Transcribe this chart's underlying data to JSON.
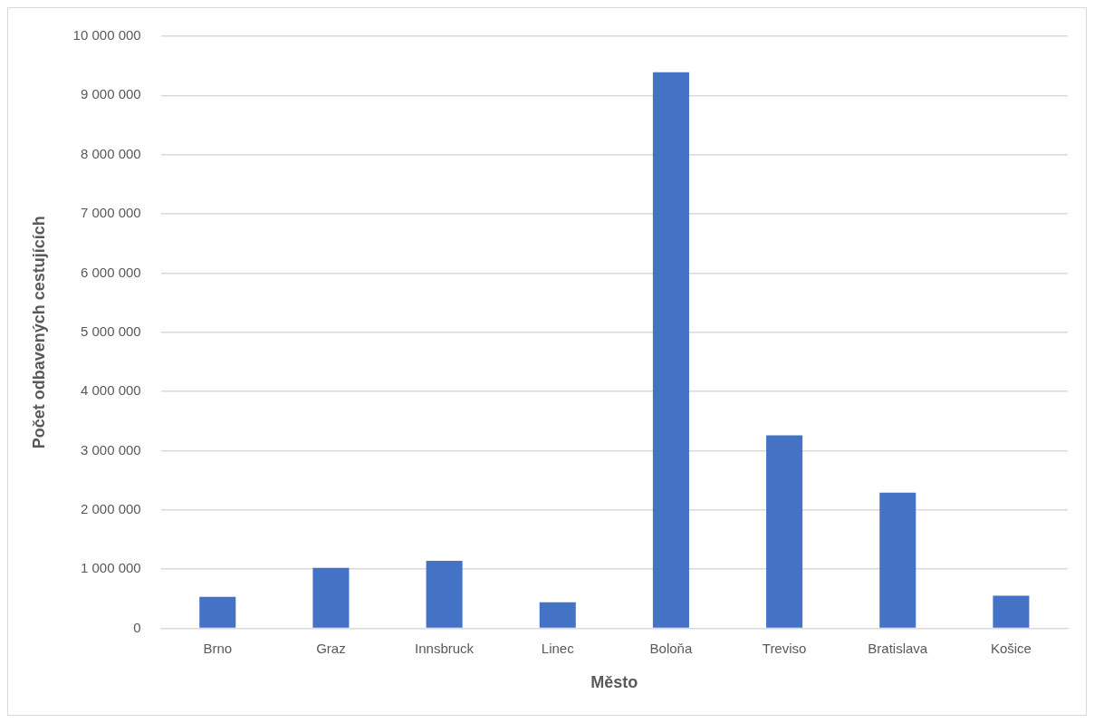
{
  "chart_data": {
    "type": "bar",
    "xlabel": "Město",
    "ylabel": "Počet odbavených cestujících",
    "categories": [
      "Brno",
      "Graz",
      "Innsbruck",
      "Linec",
      "Boloňa",
      "Treviso",
      "Bratislava",
      "Košice"
    ],
    "series": [
      {
        "color": "#4472c4",
        "values": [
          530000,
          1020000,
          1140000,
          440000,
          9390000,
          3260000,
          2290000,
          550000
        ]
      }
    ],
    "ylim": [
      0,
      10000000
    ],
    "yticks": [
      {
        "value": 0,
        "label": "0"
      },
      {
        "value": 1000000,
        "label": "1 000 000"
      },
      {
        "value": 2000000,
        "label": "2 000 000"
      },
      {
        "value": 3000000,
        "label": "3 000 000"
      },
      {
        "value": 4000000,
        "label": "4 000 000"
      },
      {
        "value": 5000000,
        "label": "5 000 000"
      },
      {
        "value": 6000000,
        "label": "6 000 000"
      },
      {
        "value": 7000000,
        "label": "7 000 000"
      },
      {
        "value": 8000000,
        "label": "8 000 000"
      },
      {
        "value": 9000000,
        "label": "9 000 000"
      },
      {
        "value": 10000000,
        "label": "10 000 000"
      }
    ],
    "grid": "y",
    "legend": false
  }
}
